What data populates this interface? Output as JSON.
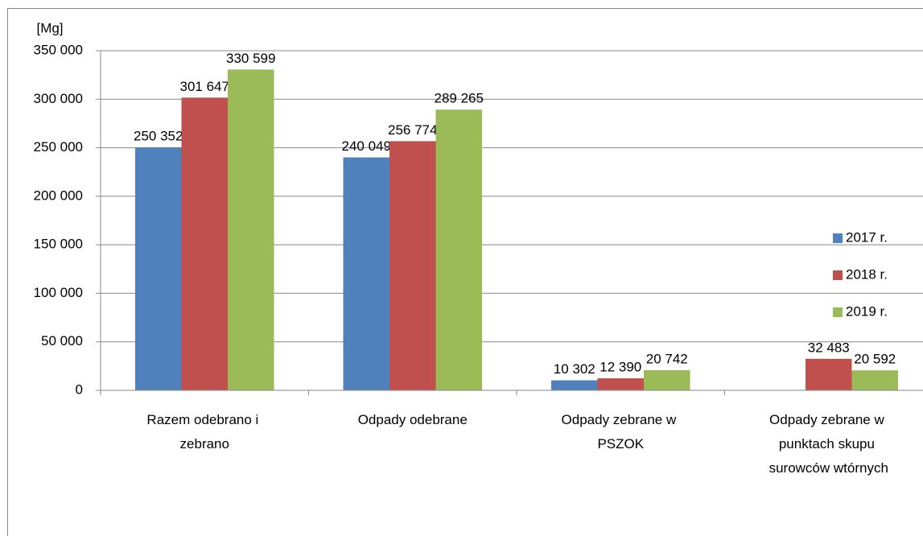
{
  "chart_data": {
    "type": "bar",
    "ylabel": "[Mg]",
    "categories": [
      "Razem odebrano i zebrano",
      "Odpady odebrane",
      "Odpady zebrane w PSZOK",
      "Odpady zebrane w punktach skupu surowców wtórnych"
    ],
    "series": [
      {
        "name": "2017 r.",
        "color": "#4f81bd",
        "values": [
          250352,
          240049,
          10302,
          null
        ],
        "value_labels": [
          "250 352",
          "240 049",
          "10 302",
          null
        ]
      },
      {
        "name": "2018 r.",
        "color": "#c0504d",
        "values": [
          301647,
          256774,
          12390,
          32483
        ],
        "value_labels": [
          "301 647",
          "256 774",
          "12 390",
          "32 483"
        ]
      },
      {
        "name": "2019 r.",
        "color": "#9bbb59",
        "values": [
          330599,
          289265,
          20742,
          20592
        ],
        "value_labels": [
          "330 599",
          "289 265",
          "20 742",
          "20 592"
        ]
      }
    ],
    "ylim": [
      0,
      350000
    ],
    "yticks": [
      {
        "value": 0,
        "label": "0"
      },
      {
        "value": 50000,
        "label": "50 000"
      },
      {
        "value": 100000,
        "label": "100 000"
      },
      {
        "value": 150000,
        "label": "150 000"
      },
      {
        "value": 200000,
        "label": "200 000"
      },
      {
        "value": 250000,
        "label": "250 000"
      },
      {
        "value": 300000,
        "label": "300 000"
      },
      {
        "value": 350000,
        "label": "350 000"
      }
    ],
    "grid": true,
    "legend": "right"
  }
}
